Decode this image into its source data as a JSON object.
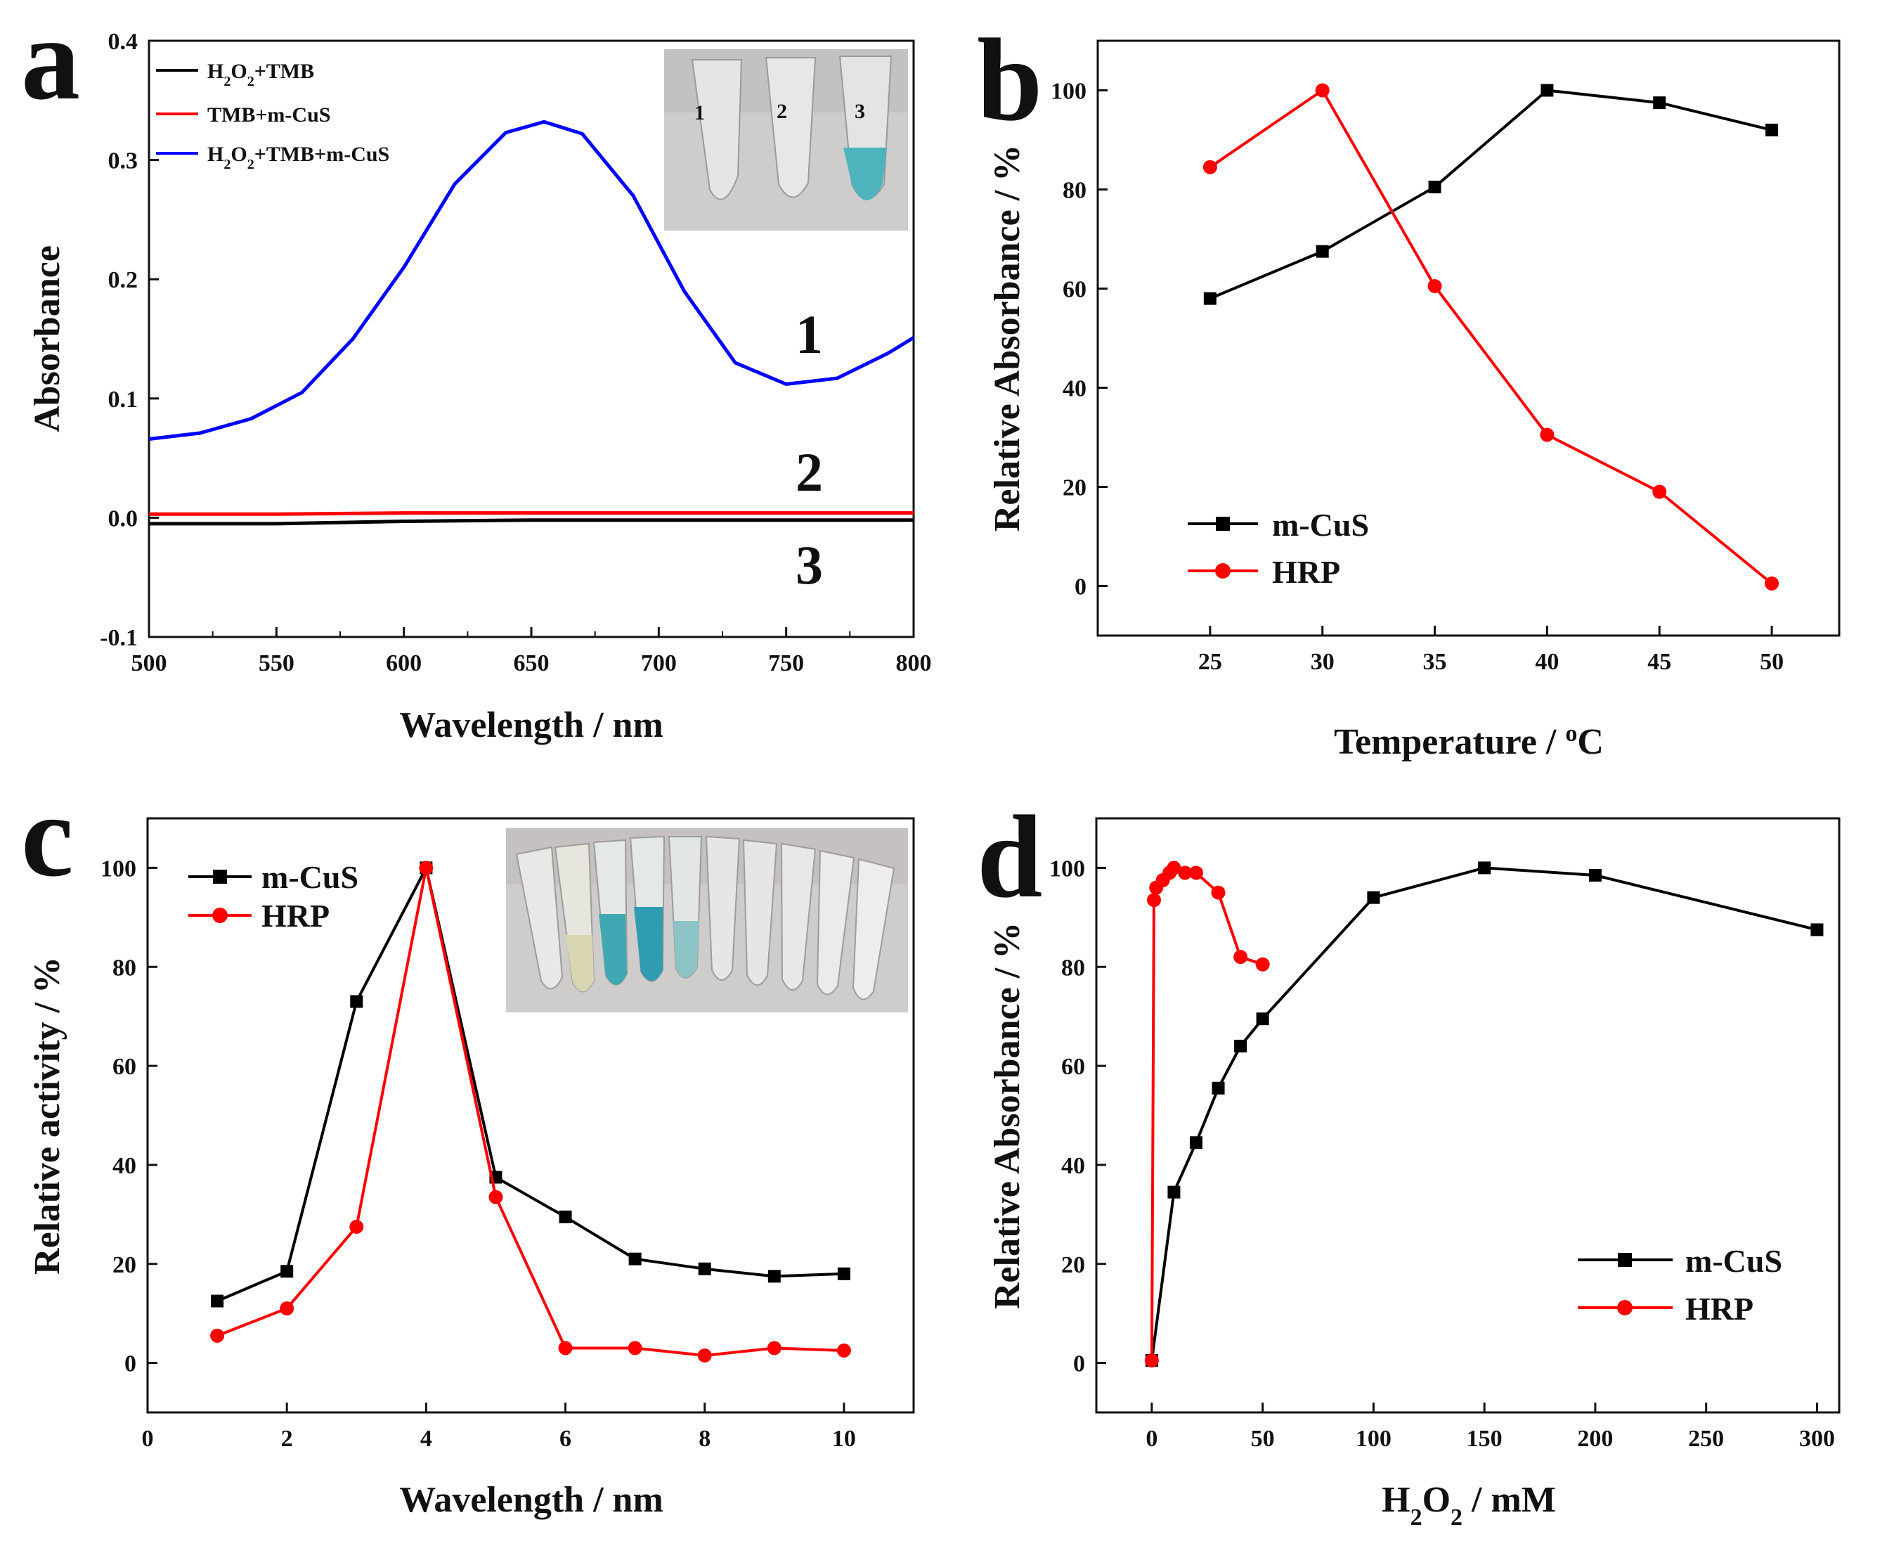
{
  "chart_data": [
    {
      "panel": "a",
      "type": "line",
      "title": "",
      "xlabel": "Wavelength /  nm",
      "ylabel": "Absorbance",
      "xlim": [
        500,
        800
      ],
      "ylim": [
        -0.1,
        0.4
      ],
      "xticks": [
        "500",
        "550",
        "600",
        "650",
        "700",
        "750",
        "800"
      ],
      "yticks": [
        "-0.1",
        "0.0",
        "0.1",
        "0.2",
        "0.3",
        "0.4"
      ],
      "legend_placement": "top-left",
      "series": [
        {
          "name": "H2O2+TMB",
          "label_main": "H",
          "label_sub1": "2",
          "label_mid": "O",
          "label_sub2": "2",
          "label_rest": "+TMB",
          "color": "#000000",
          "x": [
            500,
            550,
            600,
            650,
            700,
            750,
            800
          ],
          "y": [
            -0.005,
            -0.005,
            -0.003,
            -0.002,
            -0.002,
            -0.002,
            -0.002
          ]
        },
        {
          "name": "TMB+m-CuS",
          "label_rest": "TMB+m-CuS",
          "color": "#ff0000",
          "x": [
            500,
            550,
            600,
            650,
            700,
            750,
            800
          ],
          "y": [
            0.003,
            0.003,
            0.004,
            0.004,
            0.004,
            0.004,
            0.004
          ]
        },
        {
          "name": "H2O2+TMB+m-CuS",
          "label_main": "H",
          "label_sub1": "2",
          "label_mid": "O",
          "label_sub2": "2",
          "label_rest": "+TMB+m-CuS",
          "color": "#0000ff",
          "x": [
            500,
            520,
            540,
            560,
            580,
            600,
            620,
            640,
            655,
            670,
            690,
            710,
            730,
            750,
            770,
            790,
            800
          ],
          "y": [
            0.066,
            0.071,
            0.083,
            0.105,
            0.15,
            0.21,
            0.28,
            0.323,
            0.332,
            0.322,
            0.27,
            0.19,
            0.13,
            0.112,
            0.117,
            0.138,
            0.151
          ]
        }
      ],
      "curve_labels": [
        "1",
        "2",
        "3"
      ],
      "inset_labels": [
        "1",
        "2",
        "3"
      ]
    },
    {
      "panel": "b",
      "type": "line",
      "title": "",
      "xlabel": "Temperature  /  ",
      "xlabel_sup": "o",
      "xlabel_end": "C",
      "ylabel": "Relative Absorbance  /  %",
      "xlim": [
        20,
        53
      ],
      "ylim": [
        -10,
        110
      ],
      "xticks": [
        "25",
        "30",
        "35",
        "40",
        "45",
        "50"
      ],
      "yticks": [
        "0",
        "20",
        "40",
        "60",
        "80",
        "100"
      ],
      "legend_placement": "bottom-left",
      "series": [
        {
          "name": "m-CuS",
          "color": "#000000",
          "marker": "square",
          "x": [
            25,
            30,
            35,
            40,
            45,
            50
          ],
          "y": [
            58,
            67.5,
            80.5,
            100,
            97.5,
            92
          ]
        },
        {
          "name": "HRP",
          "color": "#ff0000",
          "marker": "circle",
          "x": [
            25,
            30,
            35,
            40,
            45,
            50
          ],
          "y": [
            84.5,
            100,
            60.5,
            30.5,
            19,
            0.5
          ]
        }
      ]
    },
    {
      "panel": "c",
      "type": "line",
      "title": "",
      "xlabel": "Wavelength  /  nm",
      "ylabel": "Relative activity  /  %",
      "xlim": [
        0,
        11
      ],
      "ylim": [
        -10,
        110
      ],
      "xticks": [
        "0",
        "2",
        "4",
        "6",
        "8",
        "10"
      ],
      "yticks": [
        "0",
        "20",
        "40",
        "60",
        "80",
        "100"
      ],
      "legend_placement": "top-left",
      "series": [
        {
          "name": "m-CuS",
          "color": "#000000",
          "marker": "square",
          "x": [
            1,
            2,
            3,
            4,
            5,
            6,
            7,
            8,
            9,
            10
          ],
          "y": [
            12.5,
            18.5,
            73,
            100,
            37.5,
            29.5,
            21,
            19,
            17.5,
            18
          ]
        },
        {
          "name": "HRP",
          "color": "#ff0000",
          "marker": "circle",
          "x": [
            1,
            2,
            3,
            4,
            5,
            6,
            7,
            8,
            9,
            10
          ],
          "y": [
            5.5,
            11,
            27.5,
            100,
            33.5,
            3,
            3,
            1.5,
            3,
            2.5
          ]
        }
      ]
    },
    {
      "panel": "d",
      "type": "line",
      "title": "",
      "xlabel_main": "H",
      "xlabel_sub1": "2",
      "xlabel_mid": "O",
      "xlabel_sub2": "2",
      "xlabel_rest": "  /  mM",
      "ylabel": "Relative Absorbance / %",
      "xlim": [
        -25,
        310
      ],
      "ylim": [
        -10,
        110
      ],
      "xticks": [
        "0",
        "50",
        "100",
        "150",
        "200",
        "250",
        "300"
      ],
      "yticks": [
        "0",
        "20",
        "40",
        "60",
        "80",
        "100"
      ],
      "legend_placement": "bottom-right",
      "series": [
        {
          "name": "m-CuS",
          "color": "#000000",
          "marker": "square",
          "x": [
            0,
            10,
            20,
            30,
            40,
            50,
            100,
            150,
            200,
            300
          ],
          "y": [
            0.5,
            34.5,
            44.5,
            55.5,
            64,
            69.5,
            94,
            100,
            98.5,
            87.5
          ]
        },
        {
          "name": "HRP",
          "color": "#ff0000",
          "marker": "circle",
          "x": [
            0,
            1,
            2,
            5,
            8,
            10,
            15,
            20,
            30,
            40,
            50
          ],
          "y": [
            0.5,
            93.5,
            96,
            97.5,
            99,
            100,
            99,
            99,
            95,
            82,
            80.5
          ]
        }
      ]
    }
  ]
}
